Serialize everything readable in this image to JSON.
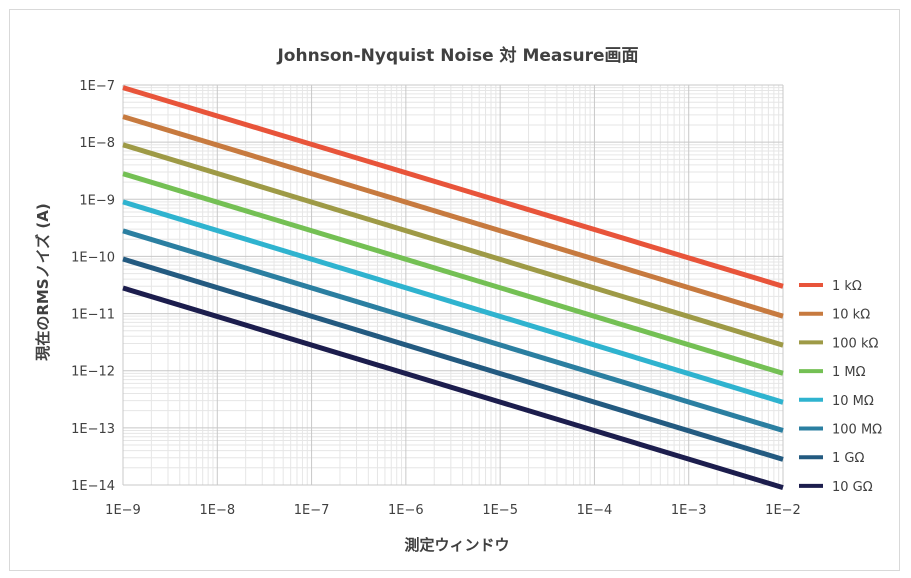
{
  "chart_data": {
    "type": "line",
    "title": "Johnson-Nyquist Noise 対 Measure画面",
    "xlabel": "測定ウィンドウ",
    "ylabel": "現在のRMSノイズ (A)",
    "x_scale": "log",
    "y_scale": "log",
    "xlim": [
      1e-09,
      0.01
    ],
    "ylim": [
      1e-14,
      1e-07
    ],
    "x_tick_labels": [
      "1E−9",
      "1E−8",
      "1E−7",
      "1E−6",
      "1E−5",
      "1E−4",
      "1E−3",
      "1E−2"
    ],
    "y_tick_labels": [
      "1E−7",
      "1E−8",
      "1E−9",
      "1E−10",
      "1E−11",
      "1E−12",
      "1E−13",
      "1E−14"
    ],
    "grid": true,
    "legend_position": "right",
    "series": [
      {
        "name": "1 kΩ",
        "color": "#e8543a",
        "x": [
          1e-09,
          0.01
        ],
        "y": [
          9e-08,
          3e-11
        ]
      },
      {
        "name": "10 kΩ",
        "color": "#c77a3f",
        "x": [
          1e-09,
          0.01
        ],
        "y": [
          2.8e-08,
          9e-12
        ]
      },
      {
        "name": "100 kΩ",
        "color": "#9e9a46",
        "x": [
          1e-09,
          0.01
        ],
        "y": [
          9e-09,
          2.8e-12
        ]
      },
      {
        "name": "1 MΩ",
        "color": "#74c054",
        "x": [
          1e-09,
          0.01
        ],
        "y": [
          2.8e-09,
          9e-13
        ]
      },
      {
        "name": "10 MΩ",
        "color": "#2fb3cf",
        "x": [
          1e-09,
          0.01
        ],
        "y": [
          9e-10,
          2.8e-13
        ]
      },
      {
        "name": "100 MΩ",
        "color": "#2b7fa1",
        "x": [
          1e-09,
          0.01
        ],
        "y": [
          2.8e-10,
          9e-14
        ]
      },
      {
        "name": "1 GΩ",
        "color": "#235a80",
        "x": [
          1e-09,
          0.01
        ],
        "y": [
          9e-11,
          2.8e-14
        ]
      },
      {
        "name": "10 GΩ",
        "color": "#1c1d4d",
        "x": [
          1e-09,
          0.01
        ],
        "y": [
          2.8e-11,
          9e-15
        ]
      }
    ]
  }
}
